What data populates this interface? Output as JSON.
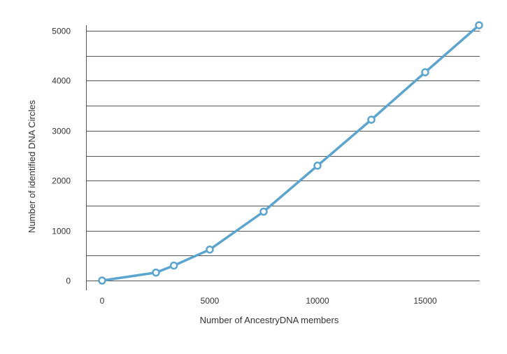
{
  "chart_data": {
    "type": "line",
    "title": "",
    "xlabel": "Number of AncestryDNA members",
    "ylabel": "Number of identified DNA Circles",
    "xlim": [
      0,
      17500
    ],
    "ylim": [
      0,
      5000
    ],
    "x_ticks": [
      {
        "value": 0,
        "label": "0"
      },
      {
        "value": 5000,
        "label": "5000"
      },
      {
        "value": 10000,
        "label": "10000"
      },
      {
        "value": 15000,
        "label": "15000"
      }
    ],
    "y_ticks": [
      {
        "value": 0,
        "label": "0"
      },
      {
        "value": 1000,
        "label": "1000"
      },
      {
        "value": 2000,
        "label": "2000"
      },
      {
        "value": 3000,
        "label": "3000"
      },
      {
        "value": 4000,
        "label": "4000"
      },
      {
        "value": 5000,
        "label": "5000"
      }
    ],
    "grid": "horizontal",
    "series": [
      {
        "color": "#5aa5cf",
        "points": [
          {
            "x": 0,
            "y": 0
          },
          {
            "x": 2500,
            "y": 160
          },
          {
            "x": 3330,
            "y": 300
          },
          {
            "x": 5000,
            "y": 620
          },
          {
            "x": 7500,
            "y": 1380
          },
          {
            "x": 10000,
            "y": 2300
          },
          {
            "x": 12500,
            "y": 3220
          },
          {
            "x": 15000,
            "y": 4170
          },
          {
            "x": 17500,
            "y": 5110
          }
        ]
      }
    ]
  }
}
